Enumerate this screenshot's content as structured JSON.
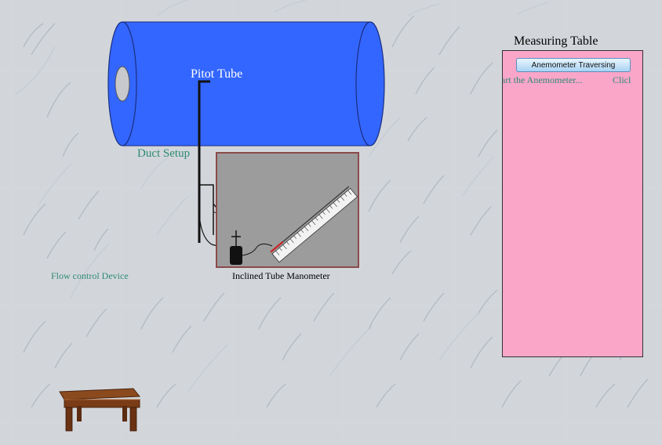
{
  "scene": {
    "pitot_label": "Pitot Tube",
    "duct_label": "Duct Setup",
    "flow_control_label": "Flow control Device",
    "manometer_label": "Inclined Tube Manometer"
  },
  "measuring_table": {
    "title": "Measuring Table",
    "button_label": "Anemometer Traversing",
    "scroll_text_1": "art the Anemometer...",
    "scroll_text_2": "Clicl"
  },
  "colors": {
    "duct": "#3366ff",
    "table_panel": "#f9a6c9",
    "label_green": "#2e8b74",
    "manometer_panel": "#9c9c9c"
  }
}
